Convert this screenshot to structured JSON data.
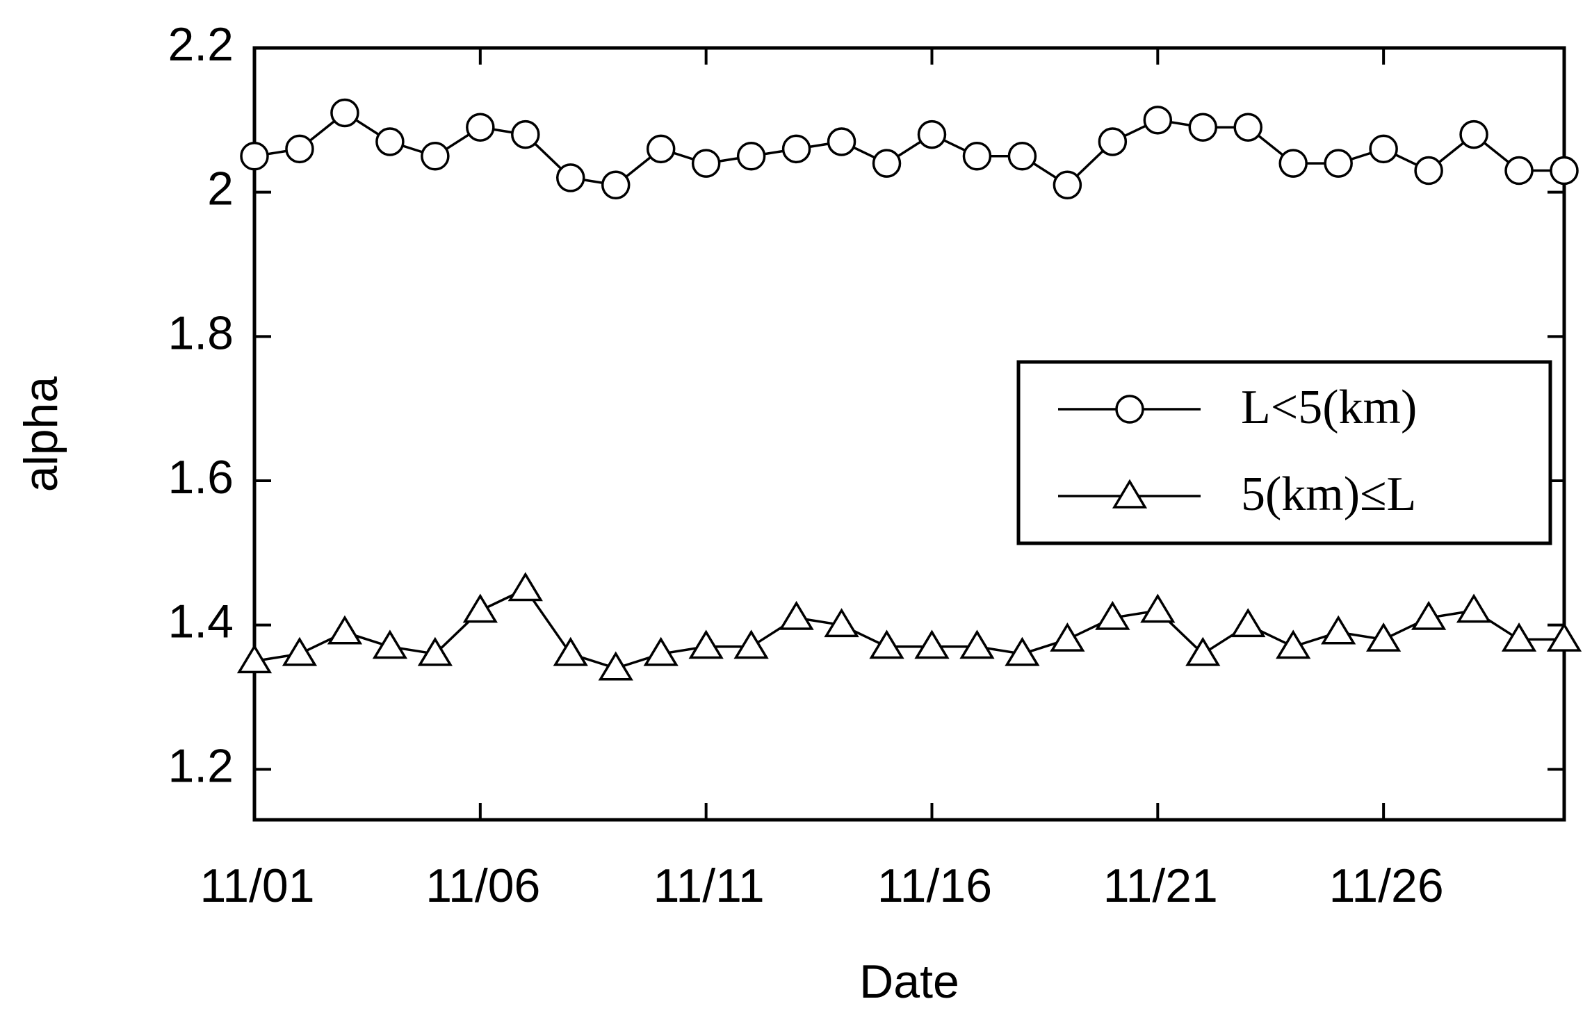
{
  "chart_data": {
    "type": "line",
    "x_label": "Date",
    "y_label": "alpha",
    "x": [
      1,
      2,
      3,
      4,
      5,
      6,
      7,
      8,
      9,
      10,
      11,
      12,
      13,
      14,
      15,
      16,
      17,
      18,
      19,
      20,
      21,
      22,
      23,
      24,
      25,
      26,
      27,
      28,
      29,
      30
    ],
    "xlim": [
      1,
      30
    ],
    "xticks": [
      {
        "value": 1,
        "label": "11/01"
      },
      {
        "value": 6,
        "label": "11/06"
      },
      {
        "value": 11,
        "label": "11/11"
      },
      {
        "value": 16,
        "label": "11/16"
      },
      {
        "value": 21,
        "label": "11/21"
      },
      {
        "value": 26,
        "label": "11/26"
      }
    ],
    "ylim": [
      1.13,
      2.2
    ],
    "yticks": [
      1.2,
      1.4,
      1.6,
      1.8,
      2,
      2.2
    ],
    "legend": "right",
    "series": [
      {
        "name": "L<5(km)",
        "color": "#000000",
        "marker": "circle",
        "values": [
          2.05,
          2.06,
          2.11,
          2.07,
          2.05,
          2.09,
          2.08,
          2.02,
          2.01,
          2.06,
          2.04,
          2.05,
          2.06,
          2.07,
          2.04,
          2.08,
          2.05,
          2.05,
          2.01,
          2.07,
          2.1,
          2.09,
          2.09,
          2.04,
          2.04,
          2.06,
          2.03,
          2.08,
          2.03,
          2.03
        ]
      },
      {
        "name": "5(km)≤L",
        "color": "#000000",
        "marker": "triangle",
        "values": [
          1.35,
          1.36,
          1.39,
          1.37,
          1.36,
          1.42,
          1.45,
          1.36,
          1.34,
          1.36,
          1.37,
          1.37,
          1.41,
          1.4,
          1.37,
          1.37,
          1.37,
          1.36,
          1.38,
          1.41,
          1.42,
          1.36,
          1.4,
          1.37,
          1.39,
          1.38,
          1.41,
          1.42,
          1.38,
          1.38
        ]
      }
    ]
  }
}
